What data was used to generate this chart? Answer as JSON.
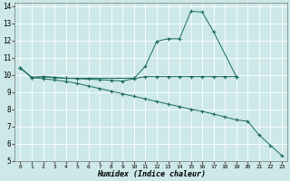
{
  "xlabel": "Humidex (Indice chaleur)",
  "bg_color": "#cce8e8",
  "grid_color": "#b0d0d0",
  "line_color": "#1a6b5a",
  "xlim": [
    -0.5,
    23.5
  ],
  "ylim": [
    5,
    14.2
  ],
  "yticks": [
    5,
    6,
    7,
    8,
    9,
    10,
    11,
    12,
    13,
    14
  ],
  "xticks": [
    0,
    1,
    2,
    3,
    4,
    5,
    6,
    7,
    8,
    9,
    10,
    11,
    12,
    13,
    14,
    15,
    16,
    17,
    18,
    19,
    20,
    21,
    22,
    23
  ],
  "line_peaked_x": [
    0,
    1,
    2,
    3,
    4,
    10,
    11,
    12,
    13,
    14,
    15,
    16,
    17,
    19
  ],
  "line_peaked_y": [
    10.4,
    9.85,
    9.9,
    9.85,
    9.8,
    9.8,
    10.5,
    11.95,
    12.1,
    12.1,
    13.7,
    13.65,
    12.5,
    9.9
  ],
  "line_flat_x": [
    0,
    1,
    2,
    3,
    4,
    5,
    6,
    7,
    8,
    9,
    10,
    11,
    12,
    13,
    14,
    15,
    16,
    17,
    18,
    19
  ],
  "line_flat_y": [
    10.4,
    9.85,
    9.9,
    9.85,
    9.8,
    9.78,
    9.75,
    9.72,
    9.68,
    9.64,
    9.78,
    9.9,
    9.9,
    9.9,
    9.9,
    9.9,
    9.9,
    9.9,
    9.9,
    9.9
  ],
  "line_desc_x": [
    0,
    1,
    2,
    3,
    4,
    5,
    6,
    7,
    8,
    9,
    10,
    11,
    12,
    13,
    14,
    15,
    16,
    17,
    18,
    19,
    20,
    21,
    22,
    23
  ],
  "line_desc_y": [
    10.4,
    9.85,
    9.78,
    9.7,
    9.62,
    9.5,
    9.35,
    9.2,
    9.05,
    8.9,
    8.75,
    8.6,
    8.45,
    8.3,
    8.15,
    8.0,
    7.88,
    7.72,
    7.55,
    7.38,
    7.3,
    6.5,
    5.9,
    5.3
  ]
}
